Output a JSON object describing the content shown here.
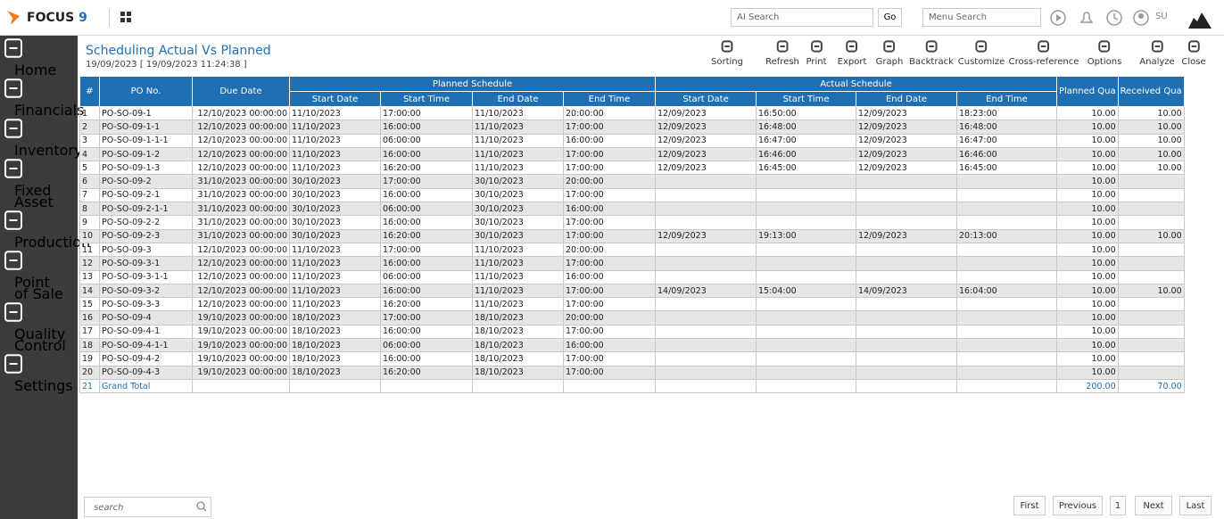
{
  "topbar": {
    "logo": "FOCUS",
    "logo_num": "9",
    "ai_search": "AI Search",
    "go": "Go",
    "menu_search": "Menu Search",
    "user": "SU"
  },
  "sidebar": [
    "Home",
    "Financials",
    "Inventory",
    "Fixed Asset",
    "Production",
    "Point of Sale",
    "Quality Control",
    "Settings"
  ],
  "report": {
    "title": "Scheduling Actual Vs Planned",
    "subtitle": "19/09/2023 [ 19/09/2023 11:24:38 ]"
  },
  "toolbar": [
    "Sorting",
    "Refresh",
    "Print",
    "Export",
    "Graph",
    "Backtrack",
    "Customize",
    "Cross-reference",
    "Options",
    "Analyze",
    "Close"
  ],
  "table": {
    "headers": {
      "index": "#",
      "po": "PO No.",
      "due": "Due Date",
      "planned_group": "Planned Schedule",
      "actual_group": "Actual Schedule",
      "planned_sub": [
        "Start Date",
        "Start Time",
        "End Date",
        "End Time"
      ],
      "actual_sub": [
        "Start Date",
        "Start Time",
        "End Date",
        "End Time"
      ],
      "planned_qty": "Planned Qua",
      "received_qty": "Received Qua"
    },
    "rows": [
      [
        "1",
        "PO-SO-09-1",
        "12/10/2023 00:00:00",
        "11/10/2023",
        "17:00:00",
        "11/10/2023",
        "20:00:00",
        "12/09/2023",
        "16:50:00",
        "12/09/2023",
        "18:23:00",
        "10.00",
        "10.00"
      ],
      [
        "2",
        "PO-SO-09-1-1",
        "12/10/2023 00:00:00",
        "11/10/2023",
        "16:00:00",
        "11/10/2023",
        "17:00:00",
        "12/09/2023",
        "16:48:00",
        "12/09/2023",
        "16:48:00",
        "10.00",
        "10.00"
      ],
      [
        "3",
        "PO-SO-09-1-1-1",
        "12/10/2023 00:00:00",
        "11/10/2023",
        "06:00:00",
        "11/10/2023",
        "16:00:00",
        "12/09/2023",
        "16:47:00",
        "12/09/2023",
        "16:47:00",
        "10.00",
        "10.00"
      ],
      [
        "4",
        "PO-SO-09-1-2",
        "12/10/2023 00:00:00",
        "11/10/2023",
        "16:00:00",
        "11/10/2023",
        "17:00:00",
        "12/09/2023",
        "16:46:00",
        "12/09/2023",
        "16:46:00",
        "10.00",
        "10.00"
      ],
      [
        "5",
        "PO-SO-09-1-3",
        "12/10/2023 00:00:00",
        "11/10/2023",
        "16:20:00",
        "11/10/2023",
        "17:00:00",
        "12/09/2023",
        "16:45:00",
        "12/09/2023",
        "16:45:00",
        "10.00",
        "10.00"
      ],
      [
        "6",
        "PO-SO-09-2",
        "31/10/2023 00:00:00",
        "30/10/2023",
        "17:00:00",
        "30/10/2023",
        "20:00:00",
        null,
        null,
        null,
        null,
        "10.00",
        null
      ],
      [
        "7",
        "PO-SO-09-2-1",
        "31/10/2023 00:00:00",
        "30/10/2023",
        "16:00:00",
        "30/10/2023",
        "17:00:00",
        null,
        null,
        null,
        null,
        "10.00",
        null
      ],
      [
        "8",
        "PO-SO-09-2-1-1",
        "31/10/2023 00:00:00",
        "30/10/2023",
        "06:00:00",
        "30/10/2023",
        "16:00:00",
        null,
        null,
        null,
        null,
        "10.00",
        null
      ],
      [
        "9",
        "PO-SO-09-2-2",
        "31/10/2023 00:00:00",
        "30/10/2023",
        "16:00:00",
        "30/10/2023",
        "17:00:00",
        null,
        null,
        null,
        null,
        "10.00",
        null
      ],
      [
        "10",
        "PO-SO-09-2-3",
        "31/10/2023 00:00:00",
        "30/10/2023",
        "16:20:00",
        "30/10/2023",
        "17:00:00",
        "12/09/2023",
        "19:13:00",
        "12/09/2023",
        "20:13:00",
        "10.00",
        "10.00"
      ],
      [
        "11",
        "PO-SO-09-3",
        "12/10/2023 00:00:00",
        "11/10/2023",
        "17:00:00",
        "11/10/2023",
        "20:00:00",
        null,
        null,
        null,
        null,
        "10.00",
        null
      ],
      [
        "12",
        "PO-SO-09-3-1",
        "12/10/2023 00:00:00",
        "11/10/2023",
        "16:00:00",
        "11/10/2023",
        "17:00:00",
        null,
        null,
        null,
        null,
        "10.00",
        null
      ],
      [
        "13",
        "PO-SO-09-3-1-1",
        "12/10/2023 00:00:00",
        "11/10/2023",
        "06:00:00",
        "11/10/2023",
        "16:00:00",
        null,
        null,
        null,
        null,
        "10.00",
        null
      ],
      [
        "14",
        "PO-SO-09-3-2",
        "12/10/2023 00:00:00",
        "11/10/2023",
        "16:00:00",
        "11/10/2023",
        "17:00:00",
        "14/09/2023",
        "15:04:00",
        "14/09/2023",
        "16:04:00",
        "10.00",
        "10.00"
      ],
      [
        "15",
        "PO-SO-09-3-3",
        "12/10/2023 00:00:00",
        "11/10/2023",
        "16:20:00",
        "11/10/2023",
        "17:00:00",
        null,
        null,
        null,
        null,
        "10.00",
        null
      ],
      [
        "16",
        "PO-SO-09-4",
        "19/10/2023 00:00:00",
        "18/10/2023",
        "17:00:00",
        "18/10/2023",
        "20:00:00",
        null,
        null,
        null,
        null,
        "10.00",
        null
      ],
      [
        "17",
        "PO-SO-09-4-1",
        "19/10/2023 00:00:00",
        "18/10/2023",
        "16:00:00",
        "18/10/2023",
        "17:00:00",
        null,
        null,
        null,
        null,
        "10.00",
        null
      ],
      [
        "18",
        "PO-SO-09-4-1-1",
        "19/10/2023 00:00:00",
        "18/10/2023",
        "06:00:00",
        "18/10/2023",
        "16:00:00",
        null,
        null,
        null,
        null,
        "10.00",
        null
      ],
      [
        "19",
        "PO-SO-09-4-2",
        "19/10/2023 00:00:00",
        "18/10/2023",
        "16:00:00",
        "18/10/2023",
        "17:00:00",
        null,
        null,
        null,
        null,
        "10.00",
        null
      ],
      [
        "20",
        "PO-SO-09-4-3",
        "19/10/2023 00:00:00",
        "18/10/2023",
        "16:20:00",
        "18/10/2023",
        "17:00:00",
        null,
        null,
        null,
        null,
        "10.00",
        null
      ],
      [
        "21",
        "Grand Total",
        null,
        null,
        null,
        null,
        null,
        null,
        null,
        null,
        null,
        "200.00",
        "70.00"
      ]
    ]
  },
  "footer": {
    "search": "search",
    "pagination": [
      "First",
      "Previous",
      "1",
      "Next",
      "Last"
    ]
  }
}
